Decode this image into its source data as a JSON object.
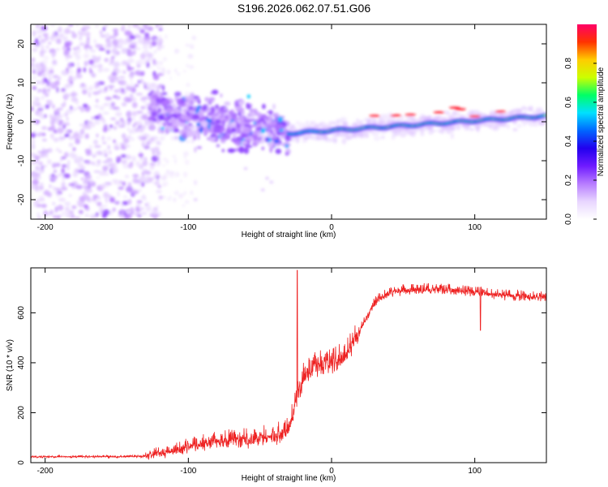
{
  "title": "S196.2026.062.07.51.G06",
  "chart_data": [
    {
      "type": "heatmap",
      "name": "spectrogram",
      "xlabel": "Height of straight line (km)",
      "ylabel": "Frequency (Hz)",
      "xlim": [
        -210,
        150
      ],
      "ylim": [
        -25,
        25
      ],
      "xticks": [
        -200,
        -100,
        0,
        100
      ],
      "yticks": [
        -20,
        -10,
        0,
        10,
        20
      ],
      "colorbar": {
        "label": "Normalized spectral amplitude",
        "range": [
          0.0,
          1.0
        ],
        "ticks": [
          0.0,
          0.2,
          0.4,
          0.6,
          0.8
        ],
        "tick_labels": [
          "0.0",
          "0.2",
          "0.4",
          "0.6",
          "0.8"
        ],
        "colormap": [
          "#ffffff",
          "#e8d6ff",
          "#b77cff",
          "#6f1bff",
          "#2200ee",
          "#0066ff",
          "#00e0ff",
          "#00ff66",
          "#ccff00",
          "#ffcc00",
          "#ff3300",
          "#ff0066"
        ]
      },
      "features": {
        "noise_region_x": [
          -210,
          -127
        ],
        "scatter_region_x": [
          -127,
          -30
        ],
        "doppler_line_x": [
          -30,
          150
        ],
        "doppler_line_freq_hz": [
          -1.5,
          1.5
        ]
      }
    },
    {
      "type": "line",
      "name": "snr",
      "xlabel": "Height of straight line (km)",
      "ylabel": "SNR (10 * v/v)",
      "xlim": [
        -210,
        150
      ],
      "ylim": [
        0,
        780
      ],
      "xticks": [
        -200,
        -100,
        0,
        100
      ],
      "yticks": [
        0,
        200,
        400,
        600
      ],
      "color": "#ee2222",
      "control_points": {
        "x": [
          -210,
          -130,
          -115,
          -100,
          -80,
          -60,
          -40,
          -30,
          -24,
          -20,
          -10,
          0,
          10,
          20,
          30,
          40,
          50,
          60,
          80,
          100,
          120,
          150
        ],
        "y": [
          22,
          24,
          35,
          60,
          80,
          85,
          95,
          130,
          250,
          330,
          380,
          390,
          420,
          530,
          640,
          675,
          685,
          690,
          690,
          680,
          665,
          660
        ]
      },
      "spikes": [
        {
          "x": -24,
          "y": 770
        },
        {
          "x": 104,
          "y": 530
        }
      ]
    }
  ]
}
